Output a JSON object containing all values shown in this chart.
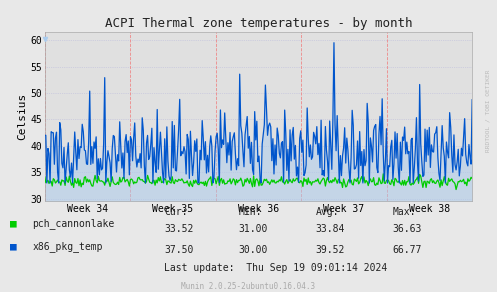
{
  "title": "ACPI Thermal zone temperatures - by month",
  "ylabel": "Celsius",
  "xtick_labels": [
    "Week 34",
    "Week 35",
    "Week 36",
    "Week 37",
    "Week 38"
  ],
  "ytick_values": [
    30,
    35,
    40,
    45,
    50,
    55,
    60
  ],
  "ylim": [
    29.5,
    61.5
  ],
  "bg_color": "#e8e8e8",
  "plot_bg_color": "#e0e0e0",
  "grid_color_h": "#bbbbdd",
  "grid_color_v": "#ff9999",
  "line1_color": "#00cc00",
  "line2_color": "#0055cc",
  "line2_fill_color": "#aaccee",
  "legend": [
    "pch_cannonlake",
    "x86_pkg_temp"
  ],
  "legend_colors": [
    "#00cc00",
    "#0055cc"
  ],
  "stats_labels": [
    "Cur:",
    "Min:",
    "Avg:",
    "Max:"
  ],
  "stats_row1": [
    "33.52",
    "31.00",
    "33.84",
    "36.63"
  ],
  "stats_row2": [
    "37.50",
    "30.00",
    "39.52",
    "66.77"
  ],
  "last_update": "Last update:  Thu Sep 19 09:01:14 2024",
  "munin_text": "Munin 2.0.25-2ubuntu0.16.04.3",
  "rrdtool_text": "RRDTOOL / TOBI OETIKER",
  "n_points": 400
}
